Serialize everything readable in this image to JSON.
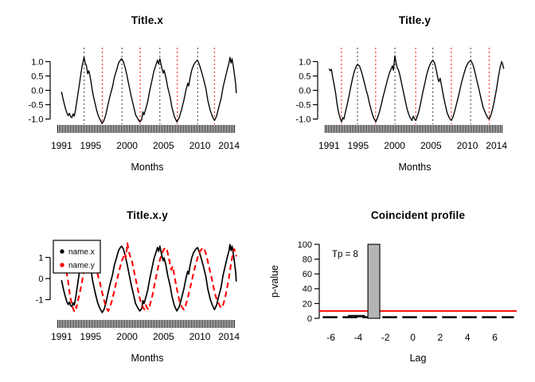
{
  "colors": {
    "background": "#ffffff",
    "series_x": "#000000",
    "series_y": "#ff0000",
    "peak_line": "#333333",
    "trough_line": "#ff0000",
    "threshold_line": "#ff0000",
    "bar_fill": "#b4b4b4",
    "bar_stroke": "#000000",
    "axis_text": "#000000"
  },
  "timeseries": {
    "x": [
      [
        1991.0,
        -0.05
      ],
      [
        1991.25,
        -0.35
      ],
      [
        1991.5,
        -0.6
      ],
      [
        1991.75,
        -0.8
      ],
      [
        1991.92,
        -0.88
      ],
      [
        1992.08,
        -0.8
      ],
      [
        1992.25,
        -0.92
      ],
      [
        1992.42,
        -0.95
      ],
      [
        1992.58,
        -0.82
      ],
      [
        1992.75,
        -0.9
      ],
      [
        1992.92,
        -0.68
      ],
      [
        1993.08,
        -0.42
      ],
      [
        1993.25,
        -0.12
      ],
      [
        1993.5,
        0.3
      ],
      [
        1993.67,
        0.6
      ],
      [
        1993.83,
        0.85
      ],
      [
        1994.0,
        1.05
      ],
      [
        1994.08,
        1.15
      ],
      [
        1994.25,
        0.95
      ],
      [
        1994.42,
        0.85
      ],
      [
        1994.58,
        0.58
      ],
      [
        1994.75,
        0.68
      ],
      [
        1994.92,
        0.48
      ],
      [
        1995.08,
        0.25
      ],
      [
        1995.25,
        -0.05
      ],
      [
        1995.5,
        -0.35
      ],
      [
        1995.75,
        -0.62
      ],
      [
        1996.0,
        -0.85
      ],
      [
        1996.25,
        -1.0
      ],
      [
        1996.58,
        -1.15
      ],
      [
        1996.83,
        -1.05
      ],
      [
        1997.08,
        -0.85
      ],
      [
        1997.33,
        -0.55
      ],
      [
        1997.67,
        -0.18
      ],
      [
        1998.0,
        0.12
      ],
      [
        1998.25,
        0.45
      ],
      [
        1998.58,
        0.72
      ],
      [
        1998.83,
        0.95
      ],
      [
        1999.08,
        1.05
      ],
      [
        1999.25,
        1.1
      ],
      [
        1999.5,
        1.0
      ],
      [
        1999.75,
        0.78
      ],
      [
        2000.0,
        0.5
      ],
      [
        2000.25,
        0.18
      ],
      [
        2000.58,
        -0.22
      ],
      [
        2000.92,
        -0.58
      ],
      [
        2001.17,
        -0.85
      ],
      [
        2001.5,
        -1.0
      ],
      [
        2001.75,
        -1.1
      ],
      [
        2002.0,
        -1.02
      ],
      [
        2002.17,
        -0.75
      ],
      [
        2002.33,
        -0.85
      ],
      [
        2002.5,
        -0.7
      ],
      [
        2002.83,
        -0.4
      ],
      [
        2003.08,
        -0.05
      ],
      [
        2003.42,
        0.35
      ],
      [
        2003.67,
        0.65
      ],
      [
        2003.92,
        0.85
      ],
      [
        2004.17,
        1.05
      ],
      [
        2004.33,
        0.92
      ],
      [
        2004.5,
        1.1
      ],
      [
        2004.67,
        0.9
      ],
      [
        2004.83,
        0.72
      ],
      [
        2004.96,
        0.6
      ],
      [
        2005.08,
        0.7
      ],
      [
        2005.33,
        0.45
      ],
      [
        2005.58,
        0.1
      ],
      [
        2005.92,
        -0.25
      ],
      [
        2006.17,
        -0.6
      ],
      [
        2006.5,
        -0.92
      ],
      [
        2006.83,
        -1.1
      ],
      [
        2007.17,
        -0.95
      ],
      [
        2007.5,
        -0.65
      ],
      [
        2007.83,
        -0.32
      ],
      [
        2008.08,
        0.0
      ],
      [
        2008.33,
        0.25
      ],
      [
        2008.46,
        0.15
      ],
      [
        2008.63,
        0.4
      ],
      [
        2008.88,
        0.7
      ],
      [
        2009.17,
        0.9
      ],
      [
        2009.46,
        1.0
      ],
      [
        2009.67,
        1.05
      ],
      [
        2009.92,
        0.9
      ],
      [
        2010.17,
        0.7
      ],
      [
        2010.5,
        0.4
      ],
      [
        2010.83,
        0.05
      ],
      [
        2011.08,
        -0.35
      ],
      [
        2011.42,
        -0.7
      ],
      [
        2011.71,
        -0.9
      ],
      [
        2012.0,
        -1.05
      ],
      [
        2012.29,
        -0.9
      ],
      [
        2012.58,
        -0.6
      ],
      [
        2012.92,
        -0.28
      ],
      [
        2013.17,
        0.1
      ],
      [
        2013.5,
        0.45
      ],
      [
        2013.79,
        0.75
      ],
      [
        2014.0,
        0.95
      ],
      [
        2014.13,
        1.15
      ],
      [
        2014.29,
        0.95
      ],
      [
        2014.42,
        1.1
      ],
      [
        2014.58,
        0.85
      ],
      [
        2014.75,
        0.55
      ],
      [
        2014.92,
        0.2
      ],
      [
        2015.0,
        -0.1
      ]
    ],
    "y": [
      [
        1991.0,
        0.75
      ],
      [
        1991.17,
        0.68
      ],
      [
        1991.33,
        0.73
      ],
      [
        1991.5,
        0.45
      ],
      [
        1991.71,
        0.18
      ],
      [
        1991.92,
        -0.12
      ],
      [
        1992.08,
        -0.45
      ],
      [
        1992.29,
        -0.75
      ],
      [
        1992.5,
        -0.95
      ],
      [
        1992.71,
        -1.1
      ],
      [
        1992.88,
        -0.95
      ],
      [
        1993.04,
        -1.0
      ],
      [
        1993.21,
        -0.8
      ],
      [
        1993.42,
        -0.58
      ],
      [
        1993.63,
        -0.33
      ],
      [
        1993.83,
        -0.08
      ],
      [
        1994.0,
        0.15
      ],
      [
        1994.21,
        0.4
      ],
      [
        1994.46,
        0.65
      ],
      [
        1994.71,
        0.82
      ],
      [
        1994.92,
        0.9
      ],
      [
        1995.17,
        0.85
      ],
      [
        1995.42,
        0.68
      ],
      [
        1995.67,
        0.45
      ],
      [
        1995.92,
        0.2
      ],
      [
        1996.08,
        0.02
      ],
      [
        1996.29,
        -0.15
      ],
      [
        1996.5,
        -0.4
      ],
      [
        1996.75,
        -0.65
      ],
      [
        1997.0,
        -0.88
      ],
      [
        1997.21,
        -1.0
      ],
      [
        1997.42,
        -1.1
      ],
      [
        1997.67,
        -0.95
      ],
      [
        1997.92,
        -0.75
      ],
      [
        1998.17,
        -0.5
      ],
      [
        1998.42,
        -0.22
      ],
      [
        1998.71,
        0.05
      ],
      [
        1999.0,
        0.35
      ],
      [
        1999.29,
        0.6
      ],
      [
        1999.54,
        0.75
      ],
      [
        1999.71,
        0.85
      ],
      [
        1999.83,
        0.7
      ],
      [
        1999.96,
        1.0
      ],
      [
        2000.04,
        1.2
      ],
      [
        2000.21,
        0.95
      ],
      [
        2000.38,
        0.78
      ],
      [
        2000.54,
        0.7
      ],
      [
        2000.71,
        0.55
      ],
      [
        2000.92,
        0.3
      ],
      [
        2001.17,
        0.0
      ],
      [
        2001.42,
        -0.3
      ],
      [
        2001.67,
        -0.6
      ],
      [
        2001.92,
        -0.82
      ],
      [
        2002.13,
        -0.95
      ],
      [
        2002.38,
        -1.05
      ],
      [
        2002.58,
        -0.9
      ],
      [
        2002.75,
        -1.0
      ],
      [
        2002.92,
        -1.05
      ],
      [
        2003.13,
        -0.9
      ],
      [
        2003.33,
        -0.73
      ],
      [
        2003.58,
        -0.45
      ],
      [
        2003.83,
        -0.13
      ],
      [
        2004.13,
        0.22
      ],
      [
        2004.42,
        0.55
      ],
      [
        2004.71,
        0.8
      ],
      [
        2004.96,
        0.95
      ],
      [
        2005.25,
        1.05
      ],
      [
        2005.5,
        0.95
      ],
      [
        2005.75,
        0.68
      ],
      [
        2005.96,
        0.4
      ],
      [
        2006.08,
        0.3
      ],
      [
        2006.25,
        0.42
      ],
      [
        2006.46,
        0.15
      ],
      [
        2006.71,
        -0.2
      ],
      [
        2006.96,
        -0.5
      ],
      [
        2007.21,
        -0.78
      ],
      [
        2007.5,
        -0.95
      ],
      [
        2007.79,
        -1.05
      ],
      [
        2008.04,
        -0.92
      ],
      [
        2008.29,
        -0.7
      ],
      [
        2008.58,
        -0.4
      ],
      [
        2008.88,
        -0.1
      ],
      [
        2009.17,
        0.25
      ],
      [
        2009.5,
        0.55
      ],
      [
        2009.79,
        0.8
      ],
      [
        2010.08,
        0.95
      ],
      [
        2010.46,
        1.05
      ],
      [
        2010.75,
        0.9
      ],
      [
        2011.0,
        0.68
      ],
      [
        2011.29,
        0.35
      ],
      [
        2011.58,
        0.05
      ],
      [
        2011.88,
        -0.3
      ],
      [
        2012.17,
        -0.6
      ],
      [
        2012.5,
        -0.8
      ],
      [
        2012.79,
        -0.95
      ],
      [
        2013.0,
        -1.0
      ],
      [
        2013.21,
        -0.88
      ],
      [
        2013.46,
        -0.65
      ],
      [
        2013.71,
        -0.35
      ],
      [
        2014.0,
        0.05
      ],
      [
        2014.25,
        0.45
      ],
      [
        2014.5,
        0.8
      ],
      [
        2014.71,
        1.0
      ],
      [
        2014.83,
        0.92
      ],
      [
        2015.0,
        0.75
      ]
    ]
  },
  "chart_data": [
    {
      "type": "line",
      "title": "Title.x",
      "xlabel": "Months",
      "xlim": [
        1990.2,
        2015.35
      ],
      "x_ticks": [
        1991,
        1995,
        2000,
        2005,
        2010,
        2014
      ],
      "y_ticks": [
        1.0,
        0.5,
        0.0,
        -0.5,
        -1.0
      ],
      "y_tick_labels": [
        "1.0",
        "0.5",
        "0.0",
        "-0.5",
        "-1.0"
      ],
      "rug": "monthly",
      "series": [
        {
          "name": "name.x",
          "key": "x",
          "color": "#000000",
          "dash": "solid"
        }
      ],
      "peak_lines": {
        "style": "dotted",
        "color": "#333333",
        "positions": [
          1994.1,
          1999.3,
          2004.5,
          2009.7
        ]
      },
      "trough_lines": {
        "style": "dotted",
        "color": "#ff0000",
        "positions": [
          1996.6,
          2001.8,
          2006.9,
          2012.0
        ]
      }
    },
    {
      "type": "line",
      "title": "Title.y",
      "xlabel": "Months",
      "xlim": [
        1990.2,
        2015.35
      ],
      "x_ticks": [
        1991,
        1995,
        2000,
        2005,
        2010,
        2014
      ],
      "y_ticks": [
        1.0,
        0.5,
        0.0,
        -0.5,
        -1.0
      ],
      "y_tick_labels": [
        "1.0",
        "0.5",
        "0.0",
        "-0.5",
        "-1.0"
      ],
      "rug": "monthly",
      "series": [
        {
          "name": "name.y",
          "key": "y",
          "color": "#000000",
          "dash": "solid"
        }
      ],
      "peak_lines": {
        "style": "dotted",
        "color": "#333333",
        "positions": [
          1994.9,
          2000.05,
          2005.25,
          2010.45
        ]
      },
      "trough_lines": {
        "style": "dotted",
        "color": "#ff0000",
        "positions": [
          1992.7,
          1997.4,
          2002.9,
          2007.8,
          2013.0
        ]
      }
    },
    {
      "type": "line",
      "title": "Title.x.y",
      "xlabel": "Months",
      "xlim": [
        1990.2,
        2015.35
      ],
      "x_ticks": [
        1991,
        1995,
        2000,
        2005,
        2010,
        2014
      ],
      "y_ticks": [
        1,
        0,
        -1
      ],
      "y_tick_labels": [
        "1",
        "0",
        "-1"
      ],
      "rug": "monthly",
      "series_scale": 1.4,
      "series": [
        {
          "name": "name.x",
          "key": "x",
          "color": "#000000",
          "dash": "solid"
        },
        {
          "name": "name.y",
          "key": "y",
          "color": "#ff0000",
          "dash": "dashed"
        }
      ],
      "legend": {
        "position": "topleft",
        "items": [
          {
            "label": "name.x",
            "color": "#000000"
          },
          {
            "label": "name.y",
            "color": "#ff0000"
          }
        ]
      }
    },
    {
      "type": "bar",
      "title": "Coincident profile",
      "xlabel": "Lag",
      "ylabel": "p-value",
      "xlim": [
        -6.85,
        7.6
      ],
      "ylim": [
        0,
        100
      ],
      "x_ticks": [
        -6,
        -4,
        -2,
        0,
        2,
        4,
        6
      ],
      "y_ticks": [
        0,
        20,
        40,
        60,
        80,
        100
      ],
      "significant_bar": {
        "lag": -3,
        "p_value": 100,
        "width_lags": 0.87,
        "fill": "#b4b4b4",
        "stroke": "#000000"
      },
      "profile_baseline": {
        "style": "dashed",
        "color": "#111111",
        "p_value": 1.5,
        "from_lag": -6.6,
        "to_lag": 7.4,
        "bump": {
          "from_lag": -4.74,
          "to_lag": -3.5,
          "p_value": 3
        }
      },
      "threshold_line": {
        "p_value": 10,
        "color": "#ff0000"
      },
      "annotation": {
        "text": "Tp = 8",
        "lag": -4.96,
        "p_value": 87
      }
    }
  ]
}
